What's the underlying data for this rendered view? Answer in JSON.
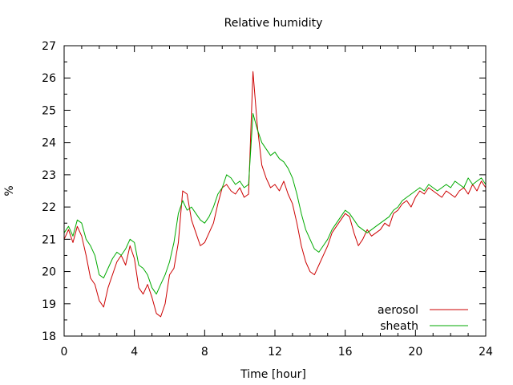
{
  "chart_data": {
    "type": "line",
    "title": "Relative humidity",
    "xlabel": "Time [hour]",
    "ylabel": "%",
    "xlim": [
      0,
      24
    ],
    "ylim": [
      18,
      27
    ],
    "x_ticks": [
      0,
      4,
      8,
      12,
      16,
      20,
      24
    ],
    "y_ticks": [
      18,
      19,
      20,
      21,
      22,
      23,
      24,
      25,
      26,
      27
    ],
    "grid": false,
    "legend_position": "bottom-right",
    "series": [
      {
        "name": "aerosol",
        "color": "#cc0000",
        "x": [
          0.0,
          0.25,
          0.5,
          0.75,
          1.0,
          1.25,
          1.5,
          1.75,
          2.0,
          2.25,
          2.5,
          2.75,
          3.0,
          3.25,
          3.5,
          3.75,
          4.0,
          4.25,
          4.5,
          4.75,
          5.0,
          5.25,
          5.5,
          5.75,
          6.0,
          6.25,
          6.5,
          6.75,
          7.0,
          7.25,
          7.5,
          7.75,
          8.0,
          8.25,
          8.5,
          8.75,
          9.0,
          9.25,
          9.5,
          9.75,
          10.0,
          10.25,
          10.5,
          10.75,
          11.0,
          11.25,
          11.5,
          11.75,
          12.0,
          12.25,
          12.5,
          12.75,
          13.0,
          13.25,
          13.5,
          13.75,
          14.0,
          14.25,
          14.5,
          14.75,
          15.0,
          15.25,
          15.5,
          15.75,
          16.0,
          16.25,
          16.5,
          16.75,
          17.0,
          17.25,
          17.5,
          17.75,
          18.0,
          18.25,
          18.5,
          18.75,
          19.0,
          19.25,
          19.5,
          19.75,
          20.0,
          20.25,
          20.5,
          20.75,
          21.0,
          21.25,
          21.5,
          21.75,
          22.0,
          22.25,
          22.5,
          22.75,
          23.0,
          23.25,
          23.5,
          23.75,
          24.0
        ],
        "y": [
          21.0,
          21.3,
          20.9,
          21.4,
          21.1,
          20.5,
          19.8,
          19.6,
          19.1,
          18.9,
          19.5,
          19.9,
          20.3,
          20.5,
          20.2,
          20.8,
          20.4,
          19.5,
          19.3,
          19.6,
          19.2,
          18.7,
          18.6,
          19.0,
          19.9,
          20.1,
          20.9,
          22.5,
          22.4,
          21.6,
          21.2,
          20.8,
          20.9,
          21.2,
          21.5,
          22.1,
          22.6,
          22.7,
          22.5,
          22.4,
          22.6,
          22.3,
          22.4,
          26.2,
          24.5,
          23.3,
          22.9,
          22.6,
          22.7,
          22.5,
          22.8,
          22.4,
          22.1,
          21.5,
          20.8,
          20.3,
          20.0,
          19.9,
          20.2,
          20.5,
          20.8,
          21.2,
          21.4,
          21.6,
          21.8,
          21.7,
          21.2,
          20.8,
          21.0,
          21.3,
          21.1,
          21.2,
          21.3,
          21.5,
          21.4,
          21.8,
          21.9,
          22.1,
          22.2,
          22.0,
          22.3,
          22.5,
          22.4,
          22.6,
          22.5,
          22.4,
          22.3,
          22.5,
          22.4,
          22.3,
          22.5,
          22.6,
          22.4,
          22.7,
          22.5,
          22.8,
          22.6
        ]
      },
      {
        "name": "sheath",
        "color": "#00aa00",
        "x": [
          0.0,
          0.25,
          0.5,
          0.75,
          1.0,
          1.25,
          1.5,
          1.75,
          2.0,
          2.25,
          2.5,
          2.75,
          3.0,
          3.25,
          3.5,
          3.75,
          4.0,
          4.25,
          4.5,
          4.75,
          5.0,
          5.25,
          5.5,
          5.75,
          6.0,
          6.25,
          6.5,
          6.75,
          7.0,
          7.25,
          7.5,
          7.75,
          8.0,
          8.25,
          8.5,
          8.75,
          9.0,
          9.25,
          9.5,
          9.75,
          10.0,
          10.25,
          10.5,
          10.75,
          11.0,
          11.25,
          11.5,
          11.75,
          12.0,
          12.25,
          12.5,
          12.75,
          13.0,
          13.25,
          13.5,
          13.75,
          14.0,
          14.25,
          14.5,
          14.75,
          15.0,
          15.25,
          15.5,
          15.75,
          16.0,
          16.25,
          16.5,
          16.75,
          17.0,
          17.25,
          17.5,
          17.75,
          18.0,
          18.25,
          18.5,
          18.75,
          19.0,
          19.25,
          19.5,
          19.75,
          20.0,
          20.25,
          20.5,
          20.75,
          21.0,
          21.25,
          21.5,
          21.75,
          22.0,
          22.25,
          22.5,
          22.75,
          23.0,
          23.25,
          23.5,
          23.75,
          24.0
        ],
        "y": [
          21.2,
          21.4,
          21.1,
          21.6,
          21.5,
          21.0,
          20.8,
          20.5,
          19.9,
          19.8,
          20.1,
          20.4,
          20.6,
          20.5,
          20.7,
          21.0,
          20.9,
          20.2,
          20.1,
          19.9,
          19.5,
          19.3,
          19.6,
          19.9,
          20.3,
          20.9,
          21.8,
          22.2,
          21.9,
          22.0,
          21.8,
          21.6,
          21.5,
          21.7,
          22.0,
          22.4,
          22.6,
          23.0,
          22.9,
          22.7,
          22.8,
          22.6,
          22.7,
          24.9,
          24.4,
          24.0,
          23.8,
          23.6,
          23.7,
          23.5,
          23.4,
          23.2,
          22.9,
          22.4,
          21.8,
          21.3,
          21.0,
          20.7,
          20.6,
          20.8,
          21.0,
          21.3,
          21.5,
          21.7,
          21.9,
          21.8,
          21.6,
          21.4,
          21.3,
          21.2,
          21.3,
          21.4,
          21.5,
          21.6,
          21.7,
          21.9,
          22.0,
          22.2,
          22.3,
          22.4,
          22.5,
          22.6,
          22.5,
          22.7,
          22.6,
          22.5,
          22.6,
          22.7,
          22.6,
          22.8,
          22.7,
          22.6,
          22.9,
          22.7,
          22.8,
          22.9,
          22.7
        ]
      }
    ]
  }
}
